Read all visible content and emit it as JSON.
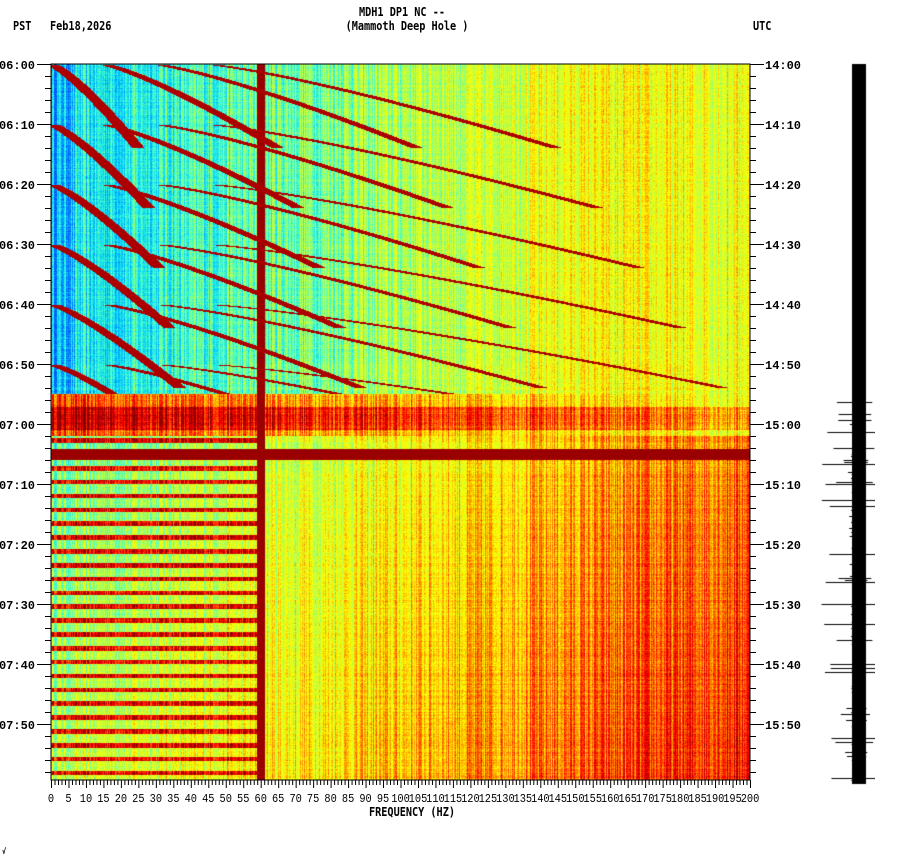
{
  "header": {
    "title": "MDH1 DP1 NC --",
    "subtitle": "(Mammoth Deep Hole )",
    "left_tz": "PST",
    "date": "Feb18,2026",
    "right_tz": "UTC"
  },
  "chart_data": {
    "type": "heatmap",
    "title": "MDH1 DP1 NC -- (Mammoth Deep Hole )",
    "xlabel": "FREQUENCY (HZ)",
    "xlim": [
      0,
      200
    ],
    "x_ticks": [
      "0",
      "5",
      "10",
      "15",
      "20",
      "25",
      "30",
      "35",
      "40",
      "45",
      "50",
      "55",
      "60",
      "65",
      "70",
      "75",
      "80",
      "85",
      "90",
      "95",
      "100",
      "105",
      "110",
      "115",
      "120",
      "125",
      "130",
      "135",
      "140",
      "145",
      "150",
      "155",
      "160",
      "165",
      "170",
      "175",
      "180",
      "185",
      "190",
      "195",
      "200"
    ],
    "y_ticks_left": [
      "06:00",
      "06:10",
      "06:20",
      "06:30",
      "06:40",
      "06:50",
      "07:00",
      "07:10",
      "07:20",
      "07:30",
      "07:40",
      "07:50"
    ],
    "y_ticks_right": [
      "14:00",
      "14:10",
      "14:20",
      "14:30",
      "14:40",
      "14:50",
      "15:00",
      "15:10",
      "15:20",
      "15:30",
      "15:40",
      "15:50"
    ],
    "ylim_minutes": [
      0,
      120
    ],
    "persistent_line_hz": 60,
    "colormap": [
      "#0050ff",
      "#00c8ff",
      "#40ffd0",
      "#c0ff40",
      "#ffff00",
      "#ff8000",
      "#ff0000",
      "#800000"
    ]
  },
  "footer_mark": "√"
}
